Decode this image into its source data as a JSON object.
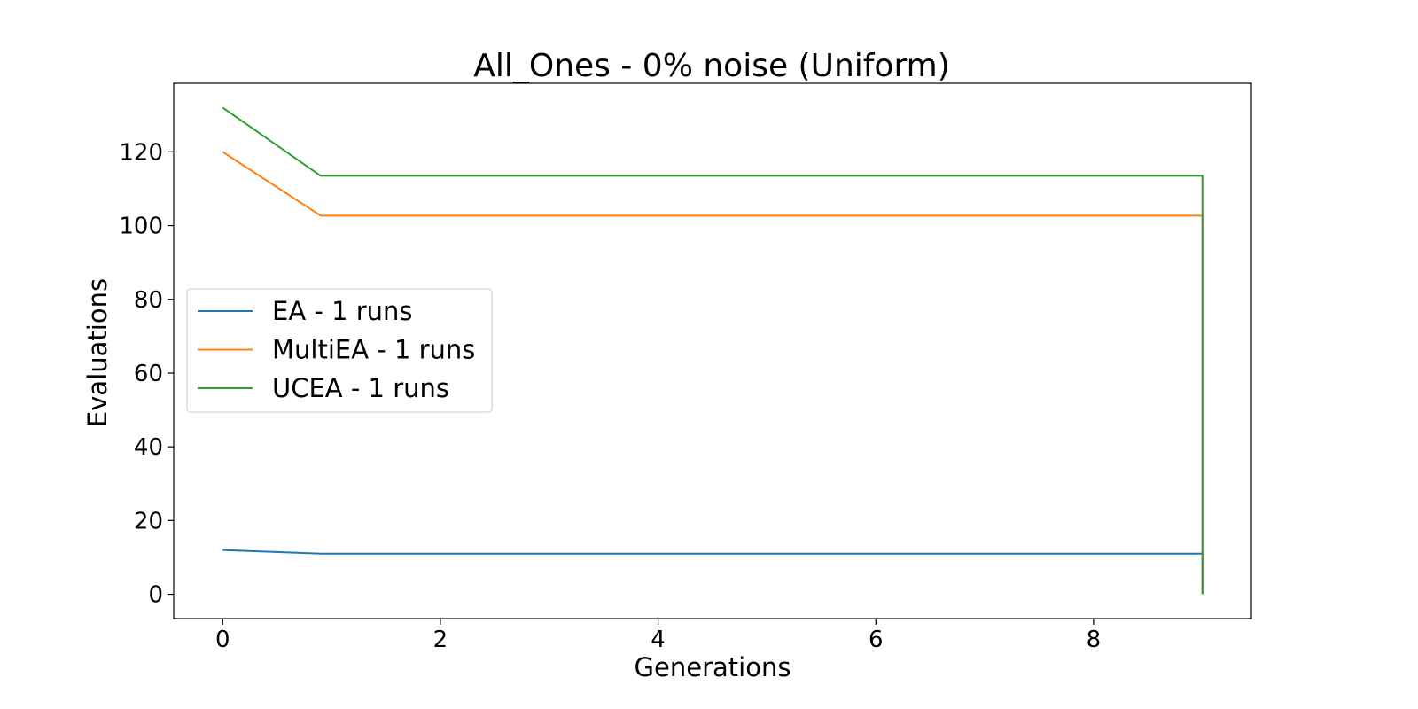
{
  "chart_data": {
    "type": "line",
    "title": "All_Ones - 0% noise (Uniform)",
    "xlabel": "Generations",
    "ylabel": "Evaluations",
    "xlim": [
      -0.45,
      9.45
    ],
    "ylim": [
      -6.6,
      138.6
    ],
    "xticks": [
      0,
      2,
      4,
      6,
      8
    ],
    "yticks": [
      0,
      20,
      40,
      60,
      80,
      100,
      120
    ],
    "grid": false,
    "legend_position": "center-left",
    "series": [
      {
        "name": "EA - 1 runs",
        "color": "#1f77b4",
        "x": [
          0,
          0.9,
          9,
          9
        ],
        "y": [
          12,
          11,
          11,
          0
        ]
      },
      {
        "name": "MultiEA - 1 runs",
        "color": "#ff7f0e",
        "x": [
          0,
          0.9,
          9,
          9
        ],
        "y": [
          120,
          102.7,
          102.7,
          0
        ]
      },
      {
        "name": "UCEA - 1 runs",
        "color": "#2ca02c",
        "x": [
          0,
          0.9,
          9,
          9
        ],
        "y": [
          132,
          113.5,
          113.5,
          0
        ]
      }
    ]
  }
}
